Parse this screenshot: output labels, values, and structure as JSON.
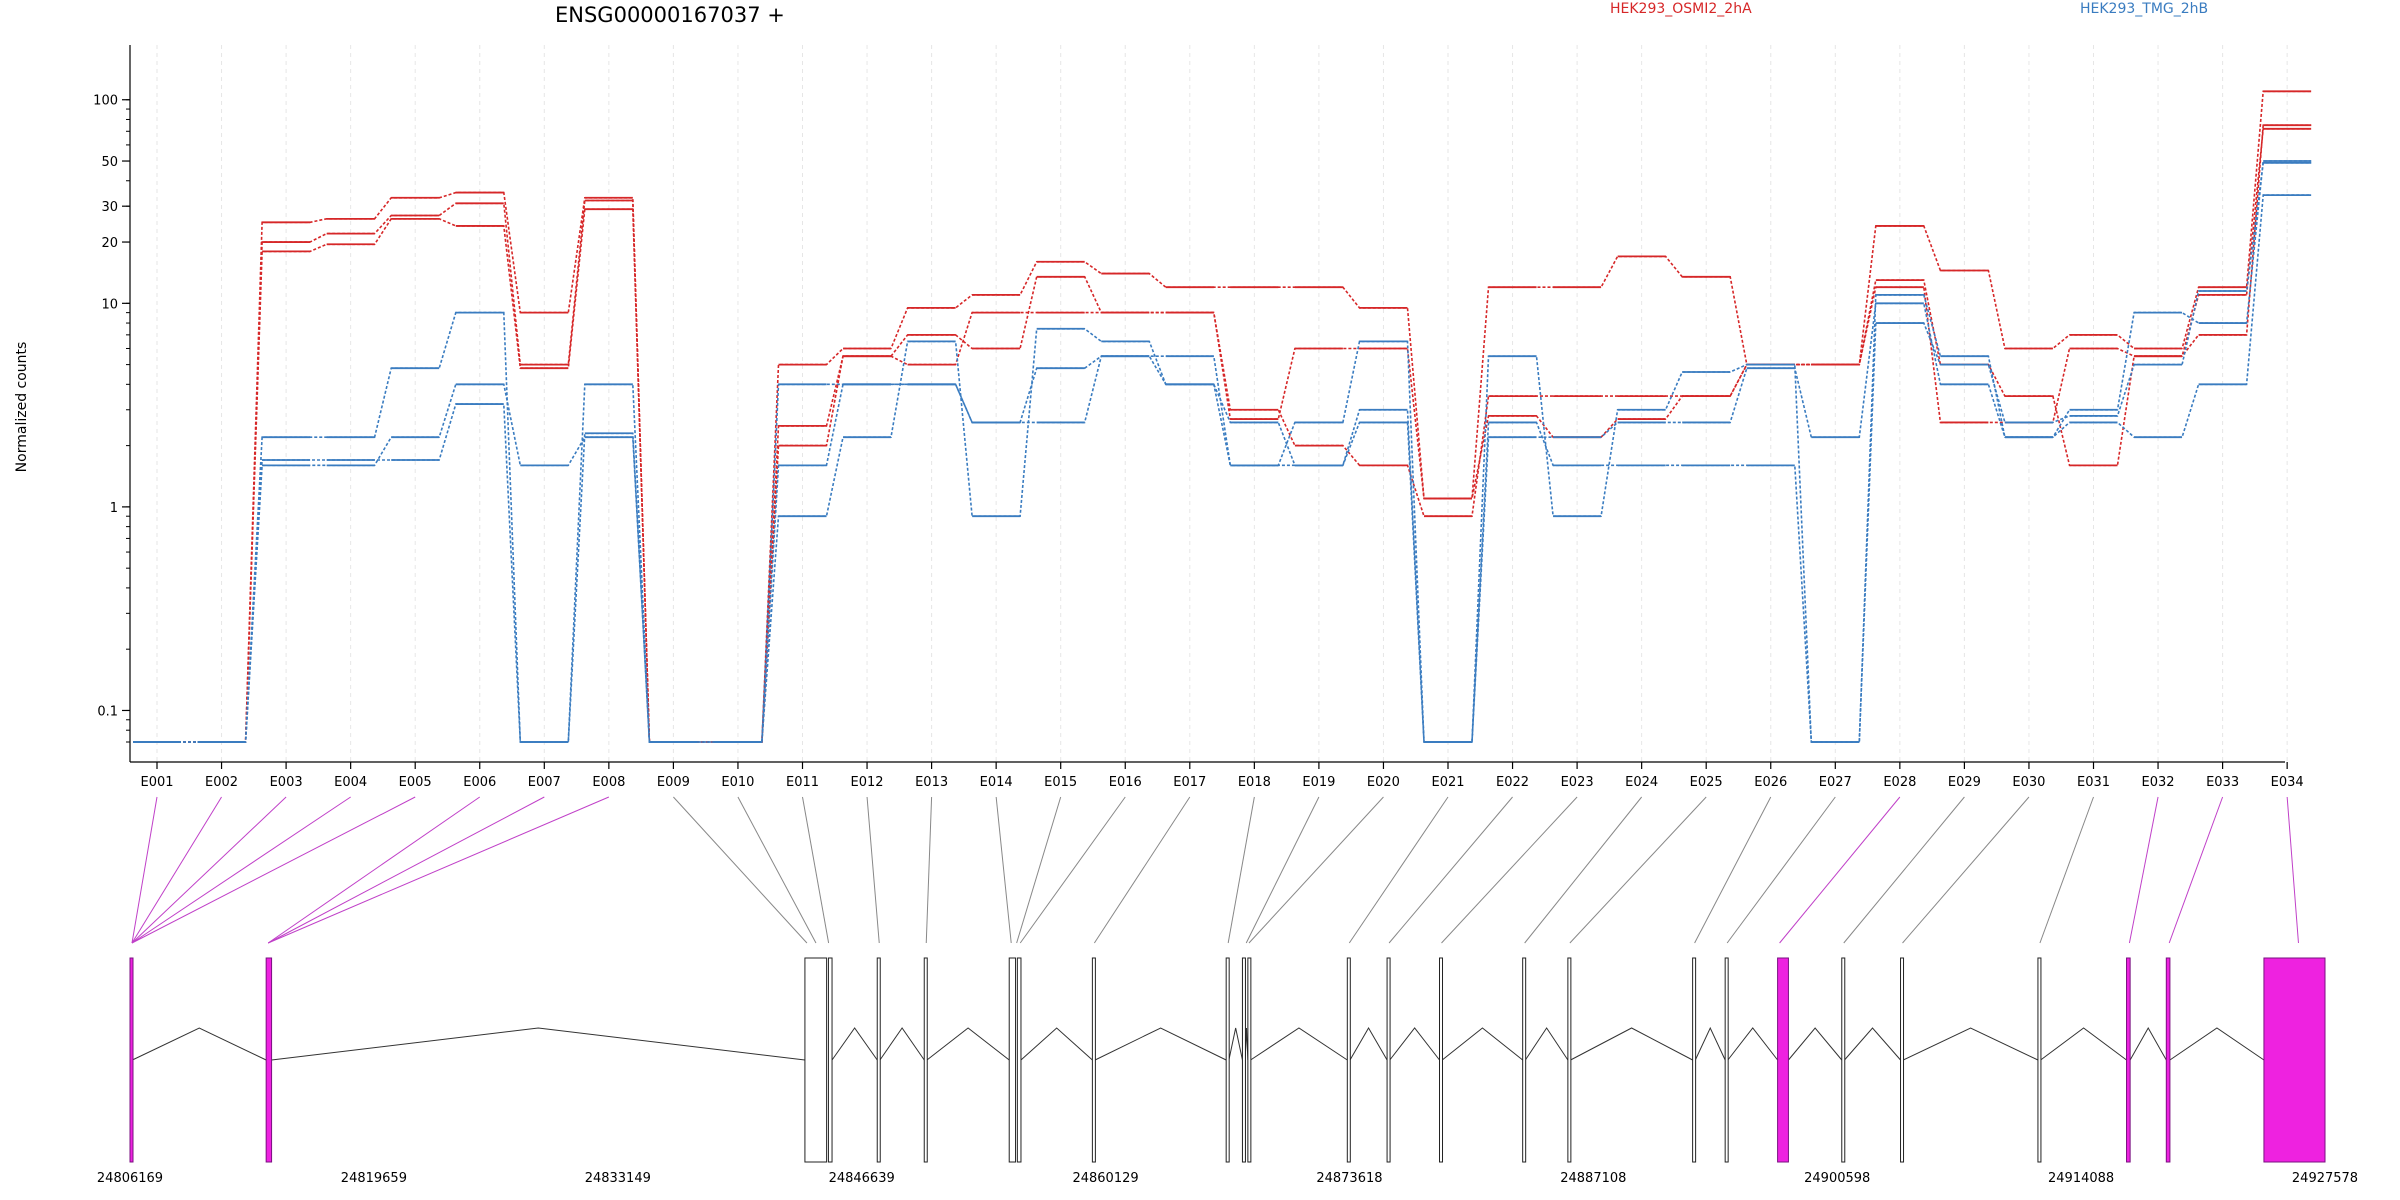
{
  "chart_data": {
    "type": "line",
    "title": "ENSG00000167037 +",
    "ylabel": "Normalized counts",
    "yscale": "log",
    "ylim": [
      0.07,
      140
    ],
    "yticks": [
      0.1,
      1,
      10,
      20,
      30,
      50,
      100
    ],
    "ytick_labels": [
      "0.1",
      "1",
      "10",
      "20",
      "30",
      "50",
      "100"
    ],
    "grid": "vertical dashed",
    "legend": [
      {
        "name": "HEK293_OSMI2_2hA",
        "color": "#d62728"
      },
      {
        "name": "HEK293_TMG_2hB",
        "color": "#3a7cc0"
      }
    ],
    "categories": [
      "E001",
      "E002",
      "E003",
      "E004",
      "E005",
      "E006",
      "E007",
      "E008",
      "E009",
      "E010",
      "E011",
      "E012",
      "E013",
      "E014",
      "E015",
      "E016",
      "E017",
      "E018",
      "E019",
      "E020",
      "E021",
      "E022",
      "E023",
      "E024",
      "E025",
      "E026",
      "E027",
      "E028",
      "E029",
      "E030",
      "E031",
      "E032",
      "E033",
      "E034"
    ],
    "series": [
      {
        "group": "HEK293_OSMI2_2hA",
        "color": "#d62728",
        "values": [
          0.07,
          0.07,
          25,
          26,
          33,
          35,
          9,
          33,
          0.07,
          0.07,
          5,
          6,
          9.5,
          11,
          16,
          14,
          12,
          12,
          12,
          9.5,
          1.1,
          12,
          12,
          17,
          13.5,
          5,
          5,
          24,
          14.5,
          6,
          7,
          6,
          12,
          110
        ]
      },
      {
        "group": "HEK293_OSMI2_2hA",
        "color": "#d62728",
        "values": [
          0.07,
          0.07,
          20,
          22,
          27,
          31,
          5,
          32,
          0.07,
          0.07,
          2.5,
          5.5,
          7,
          6,
          13.5,
          9,
          9,
          3,
          2,
          1.6,
          0.9,
          3.5,
          3.5,
          3.5,
          3.5,
          5,
          5,
          13,
          5,
          3.5,
          1.6,
          5.5,
          7,
          75
        ]
      },
      {
        "group": "HEK293_OSMI2_2hA",
        "color": "#d62728",
        "values": [
          0.07,
          0.07,
          18,
          19.5,
          26,
          24,
          4.8,
          29,
          0.07,
          0.07,
          2,
          5.5,
          5,
          9,
          9,
          9,
          9,
          2.7,
          6,
          6,
          1.1,
          2.8,
          2.2,
          2.7,
          3.5,
          5,
          5,
          12,
          2.6,
          2.6,
          6,
          5.5,
          11,
          72
        ]
      },
      {
        "group": "HEK293_TMG_2hB",
        "color": "#3a7cc0",
        "values": [
          0.07,
          0.07,
          2.2,
          2.2,
          4.8,
          9,
          0.07,
          4,
          0.07,
          0.07,
          0.9,
          2.2,
          6.5,
          0.9,
          7.5,
          6.5,
          4,
          1.6,
          2.6,
          6.5,
          0.07,
          5.5,
          0.9,
          3,
          4.6,
          5,
          0.07,
          11,
          5.5,
          2.2,
          3,
          9,
          8,
          50
        ]
      },
      {
        "group": "HEK293_TMG_2hB",
        "color": "#3a7cc0",
        "values": [
          0.07,
          0.07,
          1.6,
          1.6,
          2.2,
          4,
          1.6,
          2.2,
          0.07,
          0.07,
          1.6,
          4,
          4,
          2.6,
          4.8,
          5.5,
          5.5,
          1.6,
          1.6,
          2.6,
          0.07,
          2.6,
          1.6,
          1.6,
          1.6,
          1.6,
          0.07,
          8,
          5,
          2.6,
          2.8,
          5,
          11.5,
          49
        ]
      },
      {
        "group": "HEK293_TMG_2hB",
        "color": "#3a7cc0",
        "values": [
          0.07,
          0.07,
          1.7,
          1.7,
          1.7,
          3.2,
          0.07,
          2.3,
          0.07,
          0.07,
          4,
          4,
          4,
          2.6,
          2.6,
          5.5,
          4,
          2.6,
          1.6,
          3,
          0.07,
          2.2,
          2.2,
          2.6,
          2.6,
          4.8,
          2.2,
          10,
          4,
          2.2,
          2.6,
          2.2,
          4,
          34
        ]
      }
    ],
    "gene_model": {
      "coordinate_ticks": [
        "24806169",
        "24819659",
        "24833149",
        "24846639",
        "24860129",
        "24873618",
        "24887108",
        "24900598",
        "24914088",
        "24927578"
      ],
      "genomic_range": [
        24806169,
        24927578
      ],
      "exons": [
        {
          "start": 24806169,
          "end": 24806300,
          "highlight": true
        },
        {
          "start": 24813700,
          "end": 24814000,
          "highlight": true
        },
        {
          "start": 24843500,
          "end": 24844700,
          "highlight": false
        },
        {
          "start": 24844800,
          "end": 24845000,
          "highlight": false
        },
        {
          "start": 24847500,
          "end": 24847650,
          "highlight": false
        },
        {
          "start": 24850100,
          "end": 24850250,
          "highlight": false
        },
        {
          "start": 24854800,
          "end": 24855150,
          "highlight": false
        },
        {
          "start": 24855250,
          "end": 24855450,
          "highlight": false
        },
        {
          "start": 24859400,
          "end": 24859550,
          "highlight": false
        },
        {
          "start": 24866800,
          "end": 24866950,
          "highlight": false
        },
        {
          "start": 24867700,
          "end": 24867850,
          "highlight": false
        },
        {
          "start": 24868000,
          "end": 24868150,
          "highlight": false
        },
        {
          "start": 24873500,
          "end": 24873650,
          "highlight": false
        },
        {
          "start": 24875700,
          "end": 24875850,
          "highlight": false
        },
        {
          "start": 24878600,
          "end": 24878750,
          "highlight": false
        },
        {
          "start": 24883200,
          "end": 24883350,
          "highlight": false
        },
        {
          "start": 24885700,
          "end": 24885850,
          "highlight": false
        },
        {
          "start": 24892600,
          "end": 24892750,
          "highlight": false
        },
        {
          "start": 24894400,
          "end": 24894550,
          "highlight": false
        },
        {
          "start": 24897300,
          "end": 24897900,
          "highlight": true
        },
        {
          "start": 24900850,
          "end": 24901000,
          "highlight": false
        },
        {
          "start": 24904100,
          "end": 24904250,
          "highlight": false
        },
        {
          "start": 24911700,
          "end": 24911850,
          "highlight": false
        },
        {
          "start": 24916600,
          "end": 24916800,
          "highlight": true
        },
        {
          "start": 24918800,
          "end": 24919000,
          "highlight": true
        },
        {
          "start": 24924200,
          "end": 24927578,
          "highlight": true
        }
      ],
      "bin_anchors": [
        24806169,
        24806169,
        24806169,
        24806169,
        24806169,
        24813700,
        24813700,
        24813700,
        24843500,
        24844000,
        24844700,
        24847500,
        24850100,
        24854800,
        24855100,
        24855300,
        24859400,
        24866800,
        24867800,
        24867950,
        24873500,
        24875700,
        24878600,
        24883200,
        24885700,
        24892600,
        24894400,
        24897300,
        24900850,
        24904100,
        24911700,
        24916650,
        24918850,
        24926000
      ],
      "bin_highlight": [
        true,
        true,
        true,
        true,
        true,
        true,
        true,
        true,
        false,
        false,
        false,
        false,
        false,
        false,
        false,
        false,
        false,
        false,
        false,
        false,
        false,
        false,
        false,
        false,
        false,
        false,
        false,
        true,
        false,
        false,
        false,
        true,
        true,
        true
      ]
    }
  }
}
